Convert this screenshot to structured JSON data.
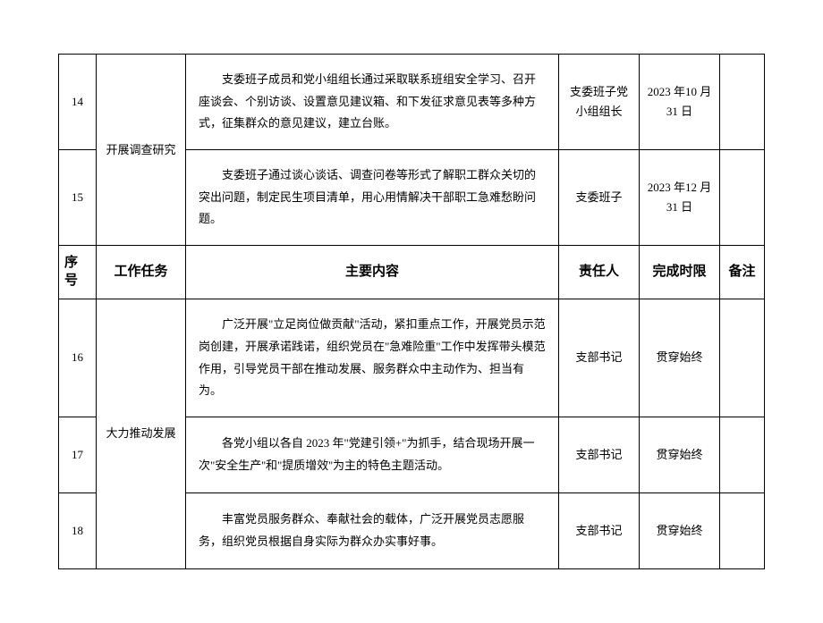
{
  "headers": {
    "seq": "序号",
    "task": "工作任务",
    "content": "主要内容",
    "responsible": "责任人",
    "deadline": "完成时限",
    "remark": "备注"
  },
  "tasks": {
    "investigation": "开展调查研究",
    "development": "大力推动发展"
  },
  "rows": [
    {
      "seq": "14",
      "content": "支委班子成员和党小组组长通过采取联系班组安全学习、召开座谈会、个别访谈、设置意见建议箱、和下发征求意见表等多种方式，征集群众的意见建议，建立台账。",
      "responsible": "支委班子党小组组长",
      "deadline": "2023 年10 月 31 日",
      "remark": ""
    },
    {
      "seq": "15",
      "content": "支委班子通过谈心谈话、调查问卷等形式了解职工群众关切的突出问题，制定民生项目清单，用心用情解决干部职工急难愁盼问题。",
      "responsible": "支委班子",
      "deadline": "2023 年12 月 31 日",
      "remark": ""
    },
    {
      "seq": "16",
      "content": "广泛开展\"立足岗位做贡献\"活动，紧扣重点工作，开展党员示范岗创建，开展承诺践诺，组织党员在\"急难险重\"工作中发挥带头模范作用，引导党员干部在推动发展、服务群众中主动作为、担当有为。",
      "responsible": "支部书记",
      "deadline": "贯穿始终",
      "remark": ""
    },
    {
      "seq": "17",
      "content": "各党小组以各自 2023 年\"党建引领+\"为抓手，结合现场开展一次\"安全生产''和\"提质增效''为主的特色主题活动。",
      "responsible": "支部书记",
      "deadline": "贯穿始终",
      "remark": ""
    },
    {
      "seq": "18",
      "content": "丰富党员服务群众、奉献社会的载体，广泛开展党员志愿服务，组织党员根据自身实际为群众办实事好事。",
      "responsible": "支部书记",
      "deadline": "贯穿始终",
      "remark": ""
    }
  ]
}
